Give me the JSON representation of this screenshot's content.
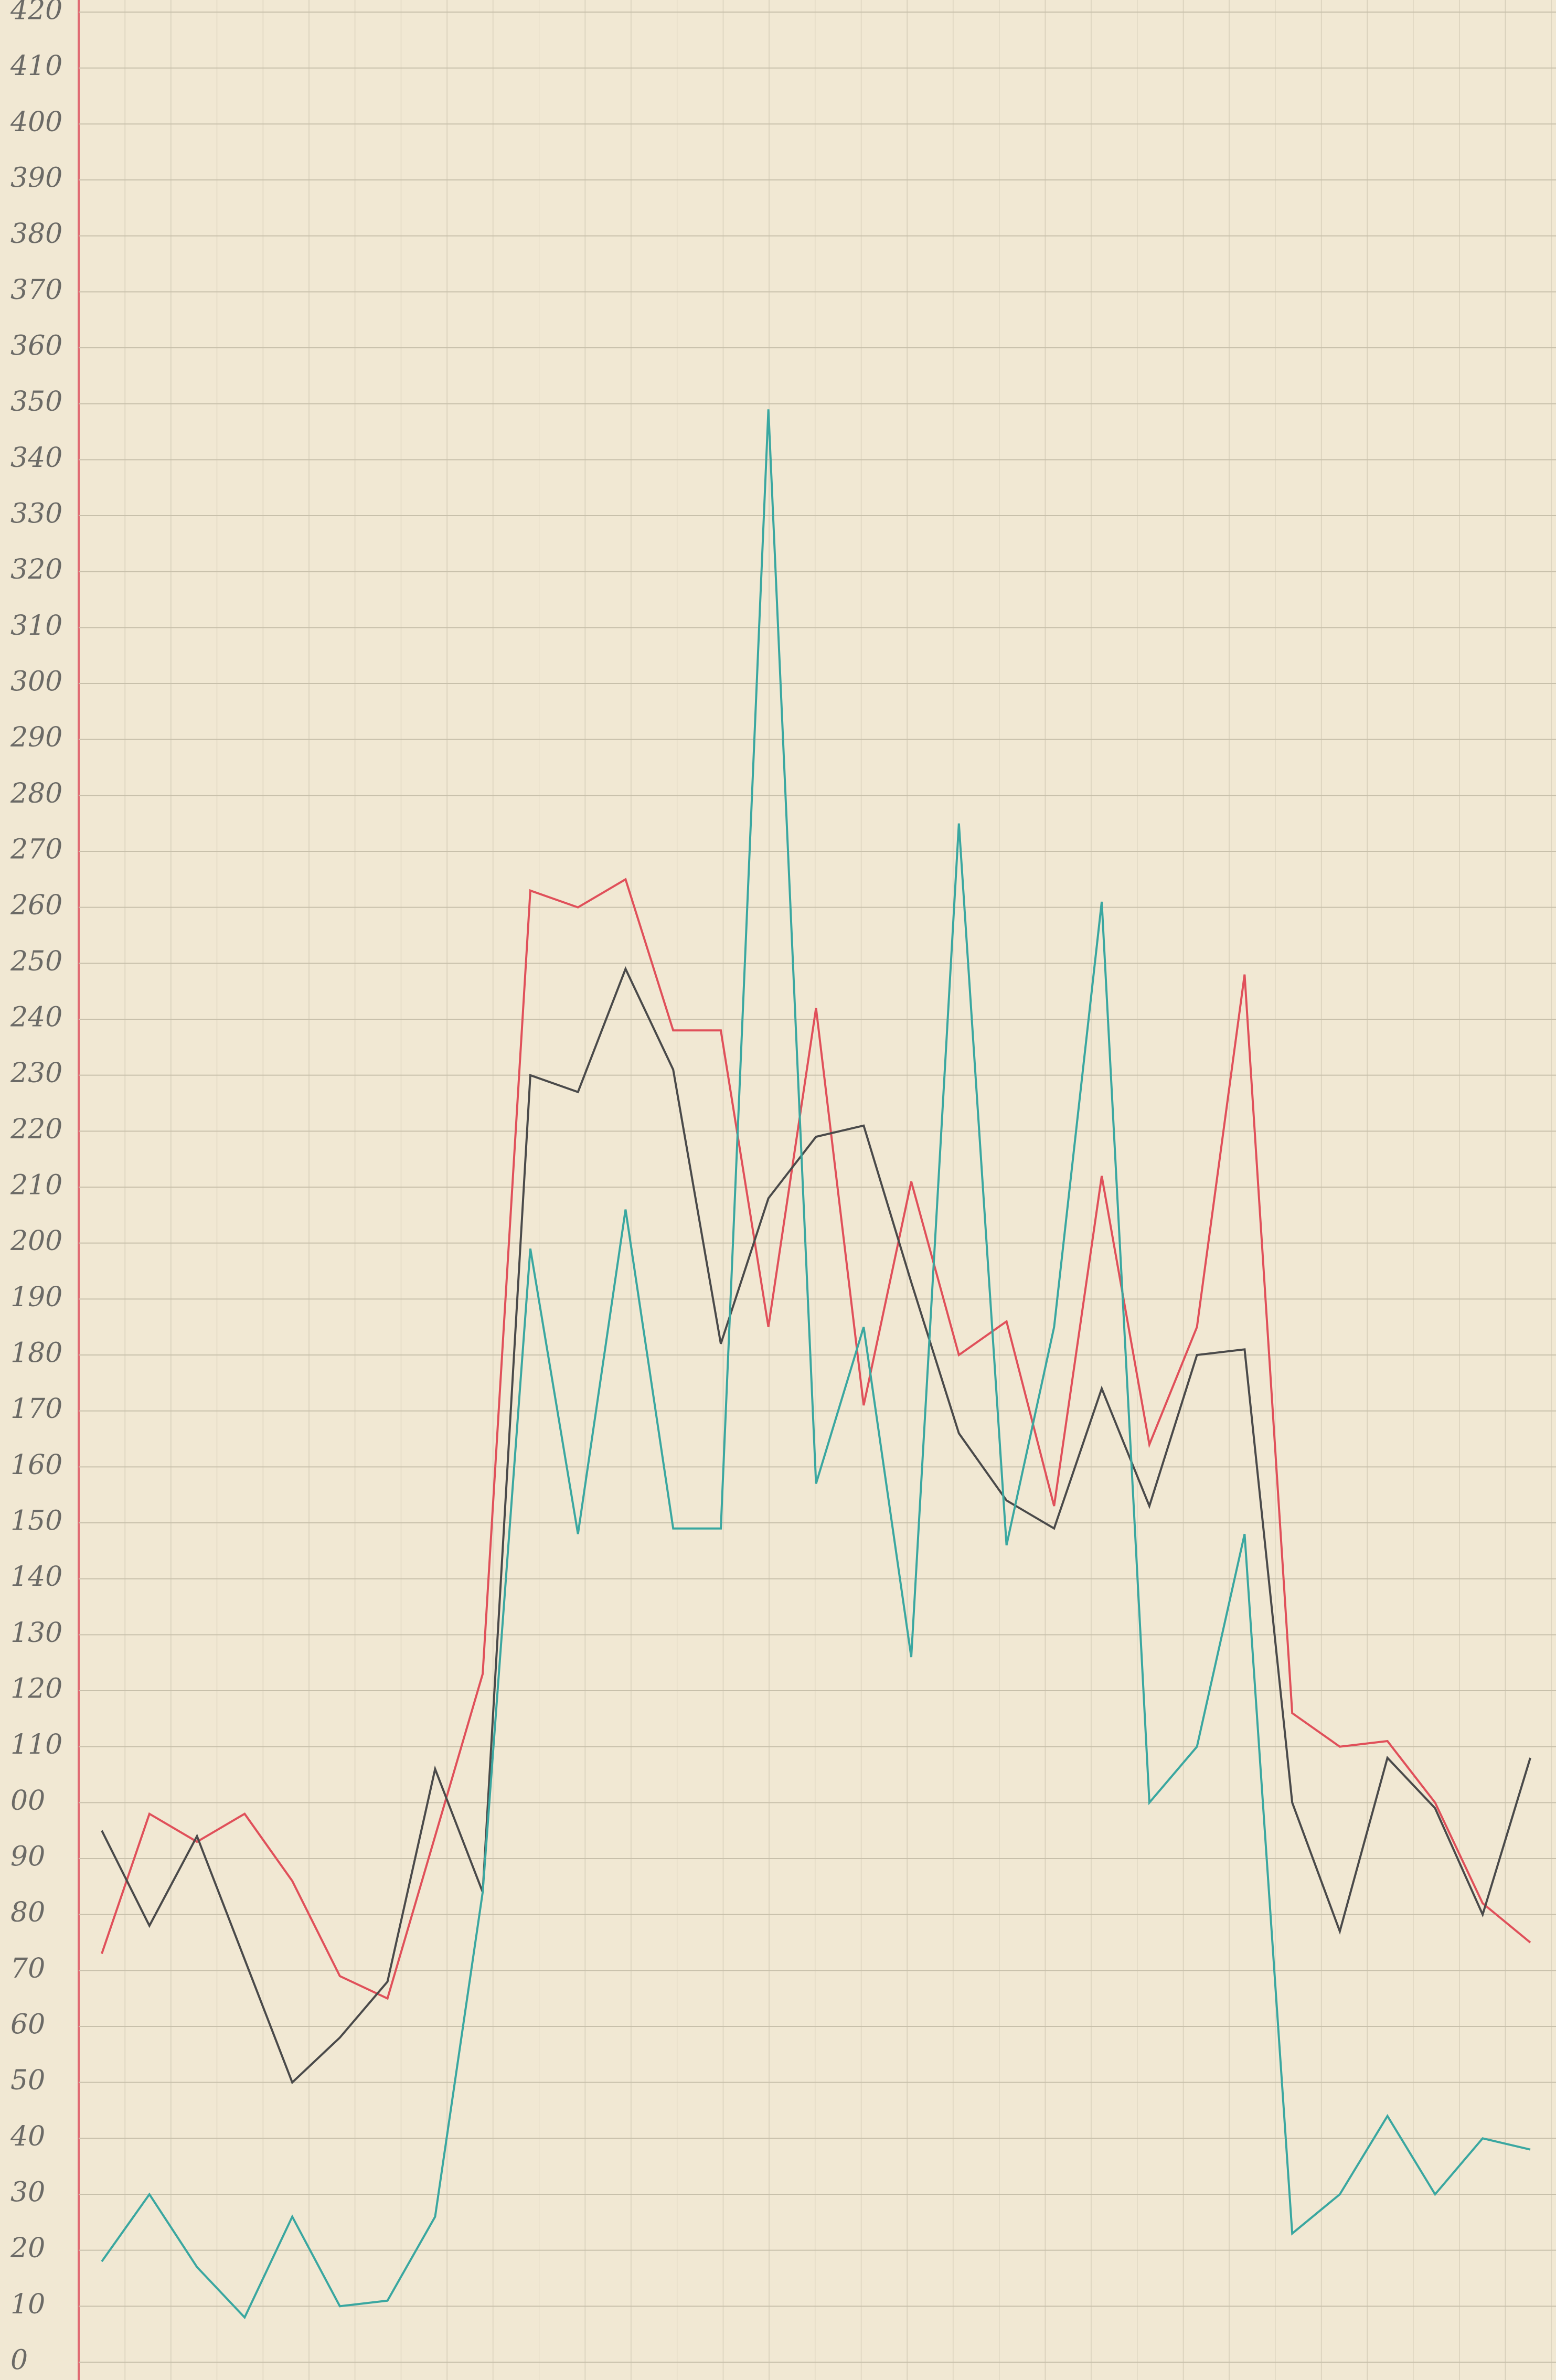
{
  "chart_data": {
    "type": "line",
    "categories": [
      null,
      null,
      null,
      null,
      null,
      null,
      null,
      null,
      null,
      null,
      null,
      null,
      null,
      null,
      null,
      null,
      null,
      null,
      null,
      null,
      null,
      null,
      null,
      null,
      null,
      null,
      null,
      null,
      null,
      null,
      null
    ],
    "series": [
      {
        "color": "#e0505a",
        "values": [
          73,
          98,
          93,
          98,
          86,
          69,
          65,
          94,
          123,
          263,
          260,
          265,
          238,
          238,
          185,
          242,
          171,
          211,
          180,
          186,
          153,
          212,
          164,
          185,
          248,
          116,
          110,
          111,
          100,
          82,
          75
        ]
      },
      {
        "color": "#4a4a4a",
        "values": [
          95,
          78,
          94,
          72,
          50,
          58,
          68,
          106,
          84,
          230,
          227,
          249,
          231,
          182,
          208,
          219,
          221,
          193,
          166,
          154,
          149,
          174,
          153,
          180,
          181,
          100,
          77,
          108,
          99,
          80,
          108
        ]
      },
      {
        "color": "#3aa7a0",
        "values": [
          18,
          30,
          17,
          8,
          26,
          10,
          11,
          26,
          84,
          199,
          148,
          206,
          149,
          149,
          349,
          157,
          185,
          126,
          275,
          146,
          185,
          261,
          100,
          110,
          148,
          23,
          30,
          44,
          30,
          40,
          38
        ]
      }
    ],
    "ylim": [
      0,
      420
    ],
    "yticks": [
      0,
      10,
      20,
      30,
      40,
      50,
      60,
      70,
      80,
      90,
      {
        "value": 100,
        "label": "00"
      },
      110,
      120,
      130,
      140,
      150,
      160,
      170,
      180,
      190,
      200,
      210,
      220,
      230,
      240,
      250,
      260,
      270,
      280,
      290,
      300,
      310,
      320,
      330,
      340,
      350,
      360,
      370,
      380,
      390,
      400,
      410,
      420
    ],
    "grid": true
  }
}
